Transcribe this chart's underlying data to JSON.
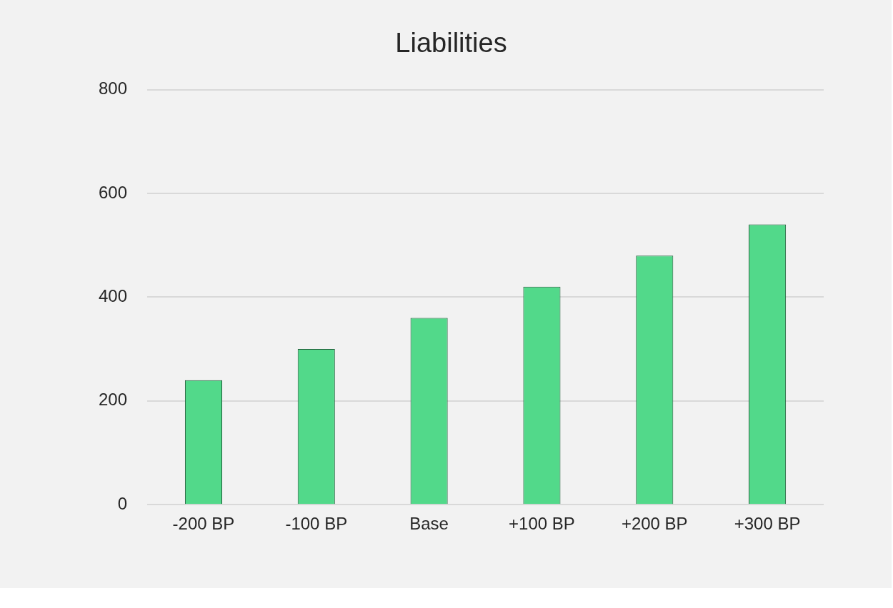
{
  "chart_data": {
    "type": "bar",
    "title": "Liabilities",
    "categories": [
      "-200 BP",
      "-100 BP",
      "Base",
      "+100 BP",
      "+200 BP",
      "+300 BP"
    ],
    "values": [
      240,
      300,
      360,
      420,
      480,
      540
    ],
    "color": "#52d98a",
    "ylim": [
      0,
      800
    ],
    "yticks": [
      0,
      200,
      400,
      600,
      800
    ],
    "grid": "y"
  }
}
